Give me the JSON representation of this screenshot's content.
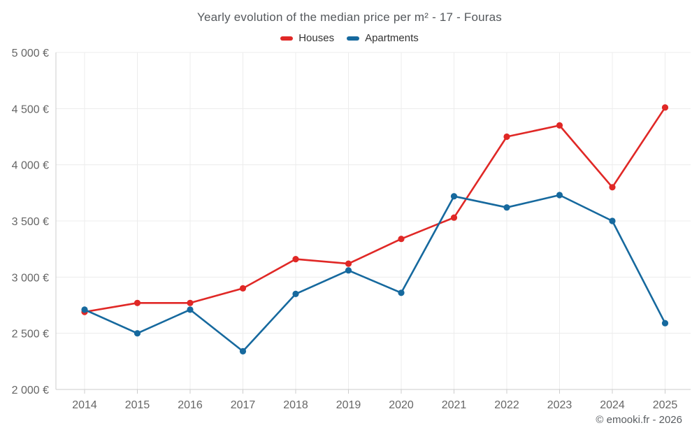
{
  "title": "Yearly evolution of the median price per m² - 17 - Fouras",
  "watermark": "© emooki.fr - 2026",
  "legend": {
    "items": [
      {
        "label": "Houses",
        "color": "#e02826"
      },
      {
        "label": "Apartments",
        "color": "#16699e"
      }
    ]
  },
  "colors": {
    "houses": "#e02826",
    "apartments": "#16699e",
    "grid": "#ececec",
    "axis": "#cccccc",
    "tick_text": "#666666"
  },
  "chart_data": {
    "type": "line",
    "title": "Yearly evolution of the median price per m² - 17 - Fouras",
    "categories": [
      "2014",
      "2015",
      "2016",
      "2017",
      "2018",
      "2019",
      "2020",
      "2021",
      "2022",
      "2023",
      "2024",
      "2025"
    ],
    "series": [
      {
        "name": "Houses",
        "color": "#e02826",
        "values": [
          2690,
          2770,
          2770,
          2900,
          3160,
          3120,
          3340,
          3530,
          4250,
          4350,
          3800,
          4510
        ]
      },
      {
        "name": "Apartments",
        "color": "#16699e",
        "values": [
          2710,
          2500,
          2710,
          2340,
          2850,
          3060,
          2860,
          3720,
          3620,
          3730,
          3500,
          2590
        ]
      }
    ],
    "xlabel": "",
    "ylabel": "",
    "ylim": [
      2000,
      5000
    ],
    "y_ticks": [
      {
        "value": 5000,
        "label": "5 000 €"
      },
      {
        "value": 4500,
        "label": "4 500 €"
      },
      {
        "value": 4000,
        "label": "4 000 €"
      },
      {
        "value": 3500,
        "label": "3 500 €"
      },
      {
        "value": 3000,
        "label": "3 000 €"
      },
      {
        "value": 2500,
        "label": "2 500 €"
      },
      {
        "value": 2000,
        "label": "2 000 €"
      }
    ],
    "grid": true,
    "legend_position": "top"
  }
}
